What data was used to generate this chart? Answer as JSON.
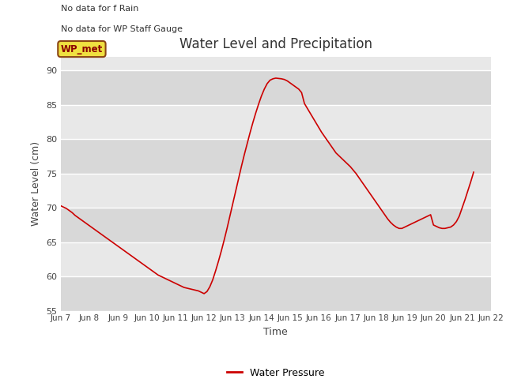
{
  "title": "Water Level and Precipitation",
  "xlabel": "Time",
  "ylabel": "Water Level (cm)",
  "ylim": [
    55,
    92
  ],
  "yticks": [
    55,
    60,
    65,
    70,
    75,
    80,
    85,
    90
  ],
  "plot_bg_color": "#e8e8e8",
  "band_color_dark": "#d8d8d8",
  "band_color_light": "#e8e8e8",
  "line_color": "#cc0000",
  "legend_label": "Water Pressure",
  "no_data_text1": "No data for f Rain",
  "no_data_text2": "No data for WP Staff Gauge",
  "wp_met_label": "WP_met",
  "x_labels": [
    "Jun 7",
    "Jun 8",
    "Jun 9",
    "Jun 10",
    "Jun 11",
    "Jun 12",
    "Jun 13",
    "Jun 14",
    "Jun 15",
    "Jun 16",
    "Jun 17",
    "Jun 18",
    "Jun 19",
    "Jun 20",
    "Jun 21",
    "Jun 22"
  ],
  "x_values": [
    7.0,
    7.1,
    7.2,
    7.3,
    7.4,
    7.5,
    7.6,
    7.7,
    7.8,
    7.9,
    8.0,
    8.1,
    8.2,
    8.3,
    8.4,
    8.5,
    8.6,
    8.7,
    8.8,
    8.9,
    9.0,
    9.1,
    9.2,
    9.3,
    9.4,
    9.5,
    9.6,
    9.7,
    9.8,
    9.9,
    10.0,
    10.1,
    10.2,
    10.3,
    10.4,
    10.5,
    10.6,
    10.7,
    10.8,
    10.9,
    11.0,
    11.1,
    11.2,
    11.3,
    11.4,
    11.5,
    11.6,
    11.7,
    11.8,
    11.9,
    12.0,
    12.1,
    12.2,
    12.3,
    12.4,
    12.5,
    12.6,
    12.7,
    12.8,
    12.9,
    13.0,
    13.1,
    13.2,
    13.3,
    13.4,
    13.5,
    13.6,
    13.7,
    13.8,
    13.9,
    14.0,
    14.1,
    14.2,
    14.3,
    14.4,
    14.5,
    14.6,
    14.7,
    14.8,
    14.9,
    15.0,
    15.1,
    15.2,
    15.3,
    15.4,
    15.5,
    15.6,
    15.7,
    15.8,
    15.9,
    16.0,
    16.1,
    16.2,
    16.3,
    16.4,
    16.5,
    16.6,
    16.7,
    16.8,
    16.9,
    17.0,
    17.1,
    17.2,
    17.3,
    17.4,
    17.5,
    17.6,
    17.7,
    17.8,
    17.9,
    18.0,
    18.1,
    18.2,
    18.3,
    18.4,
    18.5,
    18.6,
    18.7,
    18.8,
    18.9,
    19.0,
    19.1,
    19.2,
    19.3,
    19.4,
    19.5,
    19.6,
    19.7,
    19.8,
    19.9,
    20.0,
    20.1,
    20.2,
    20.3,
    20.4,
    20.5,
    20.6,
    20.7,
    20.8,
    20.9,
    21.0,
    21.1,
    21.2,
    21.3,
    21.4
  ],
  "y_values": [
    70.3,
    70.1,
    69.9,
    69.6,
    69.3,
    68.9,
    68.6,
    68.3,
    68.0,
    67.7,
    67.4,
    67.1,
    66.8,
    66.5,
    66.2,
    65.9,
    65.6,
    65.3,
    65.0,
    64.7,
    64.4,
    64.1,
    63.8,
    63.5,
    63.2,
    62.9,
    62.6,
    62.3,
    62.0,
    61.7,
    61.4,
    61.1,
    60.8,
    60.5,
    60.2,
    60.0,
    59.8,
    59.6,
    59.4,
    59.2,
    59.0,
    58.8,
    58.6,
    58.4,
    58.3,
    58.2,
    58.1,
    58.0,
    57.9,
    57.7,
    57.5,
    57.8,
    58.5,
    59.5,
    60.8,
    62.2,
    63.7,
    65.3,
    67.0,
    68.8,
    70.6,
    72.4,
    74.2,
    76.0,
    77.7,
    79.3,
    80.9,
    82.4,
    83.8,
    85.1,
    86.3,
    87.3,
    88.1,
    88.6,
    88.8,
    88.9,
    88.85,
    88.8,
    88.7,
    88.5,
    88.2,
    87.9,
    87.6,
    87.3,
    86.8,
    85.2,
    84.5,
    83.8,
    83.1,
    82.4,
    81.7,
    81.0,
    80.4,
    79.8,
    79.2,
    78.6,
    78.0,
    77.6,
    77.2,
    76.8,
    76.4,
    76.0,
    75.5,
    75.0,
    74.4,
    73.8,
    73.2,
    72.6,
    72.0,
    71.4,
    70.8,
    70.2,
    69.6,
    69.0,
    68.4,
    67.9,
    67.5,
    67.2,
    67.0,
    67.0,
    67.2,
    67.4,
    67.6,
    67.8,
    68.0,
    68.2,
    68.4,
    68.6,
    68.8,
    69.0,
    67.5,
    67.3,
    67.1,
    67.0,
    67.0,
    67.1,
    67.2,
    67.5,
    68.0,
    68.8,
    70.0,
    71.2,
    72.5,
    73.8,
    75.2
  ]
}
